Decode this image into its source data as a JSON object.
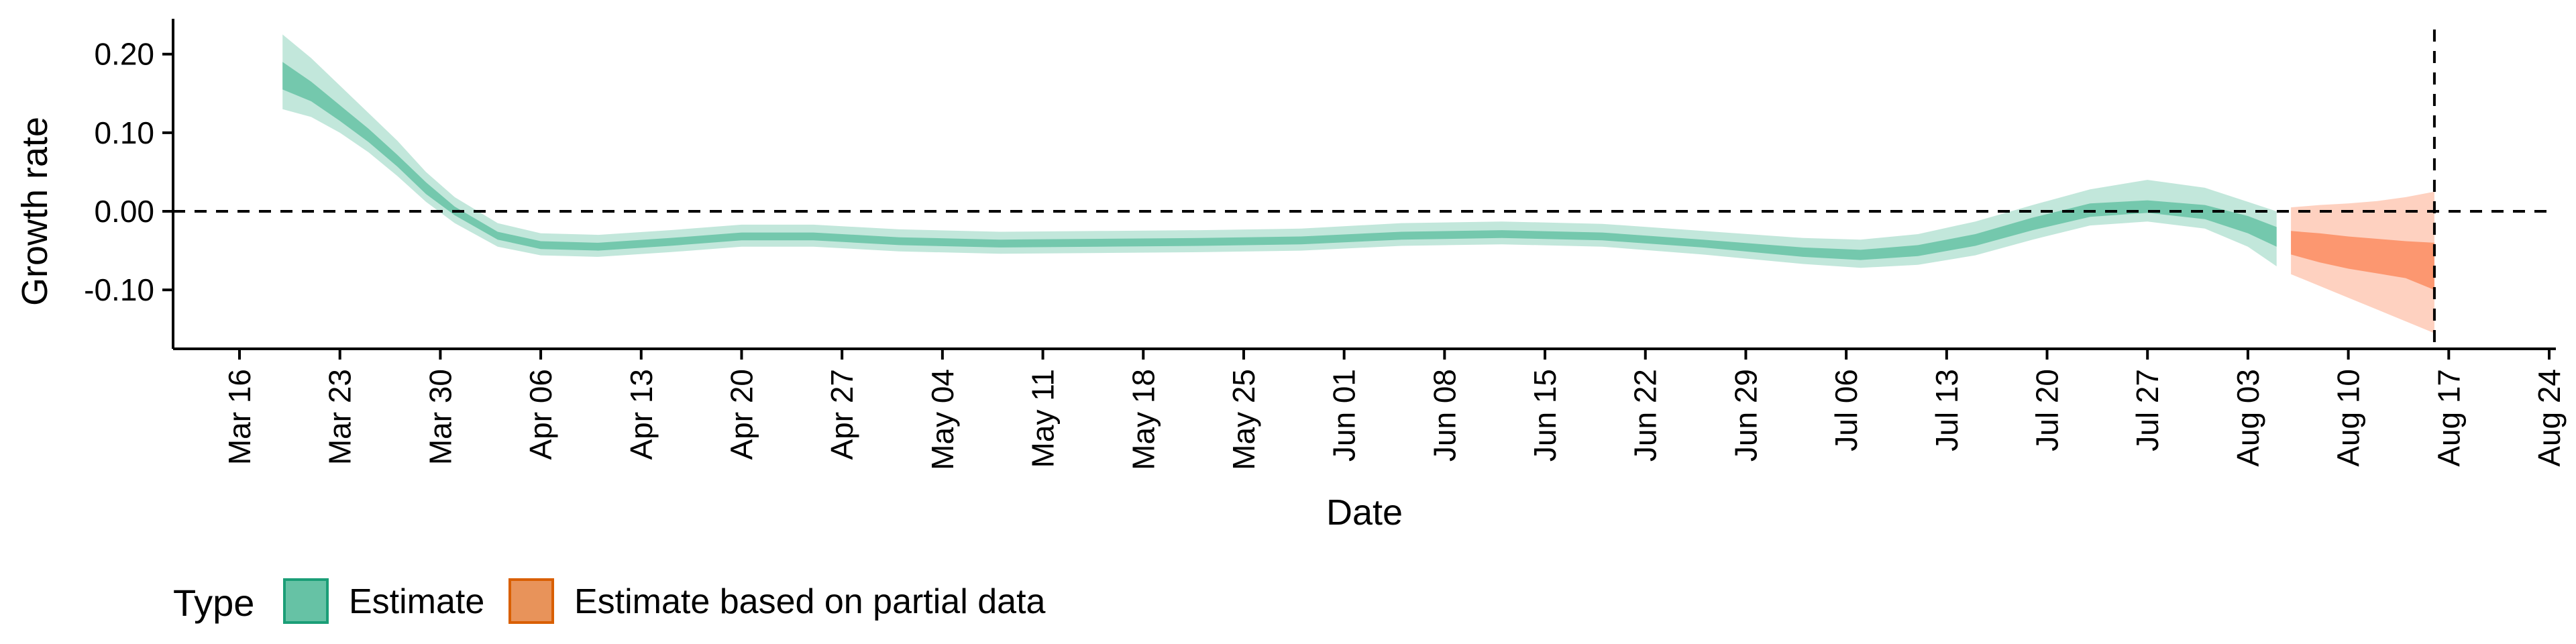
{
  "chart_data": {
    "type": "area",
    "xlabel": "Date",
    "ylabel": "Growth rate",
    "ylim": [
      -0.175,
      0.245
    ],
    "y_ticks": [
      0.2,
      0.1,
      0.0,
      -0.1
    ],
    "y_tick_labels": [
      "0.20",
      "0.10",
      "0.00",
      "-0.10"
    ],
    "x_tick_labels": [
      "Mar 16",
      "Mar 23",
      "Mar 30",
      "Apr 06",
      "Apr 13",
      "Apr 20",
      "Apr 27",
      "May 04",
      "May 11",
      "May 18",
      "May 25",
      "Jun 01",
      "Jun 08",
      "Jun 15",
      "Jun 22",
      "Jun 29",
      "Jul 06",
      "Jul 13",
      "Jul 20",
      "Jul 27",
      "Aug 03",
      "Aug 10",
      "Aug 17",
      "Aug 24"
    ],
    "x_ticks": [
      "2020-03-16",
      "2020-03-23",
      "2020-03-30",
      "2020-04-06",
      "2020-04-13",
      "2020-04-20",
      "2020-04-27",
      "2020-05-04",
      "2020-05-11",
      "2020-05-18",
      "2020-05-25",
      "2020-06-01",
      "2020-06-08",
      "2020-06-15",
      "2020-06-22",
      "2020-06-29",
      "2020-07-06",
      "2020-07-13",
      "2020-07-20",
      "2020-07-27",
      "2020-08-03",
      "2020-08-10",
      "2020-08-17",
      "2020-08-24"
    ],
    "reference_lines": {
      "y": 0.0,
      "x": "2020-08-16",
      "style": "dashed"
    },
    "colors": {
      "estimate": "#66c2a5",
      "partial": "#fc8d62"
    },
    "legend": {
      "title": "Type",
      "placement": "bottom-left",
      "entries": [
        "Estimate",
        "Estimate based on partial data"
      ]
    },
    "series": [
      {
        "name": "Estimate",
        "points": [
          {
            "x": "2020-03-19",
            "lo90": 0.13,
            "lo50": 0.155,
            "hi50": 0.19,
            "hi90": 0.225
          },
          {
            "x": "2020-03-21",
            "lo90": 0.12,
            "lo50": 0.14,
            "hi50": 0.165,
            "hi90": 0.195
          },
          {
            "x": "2020-03-23",
            "lo90": 0.1,
            "lo50": 0.115,
            "hi50": 0.135,
            "hi90": 0.16
          },
          {
            "x": "2020-03-25",
            "lo90": 0.075,
            "lo50": 0.088,
            "hi50": 0.105,
            "hi90": 0.125
          },
          {
            "x": "2020-03-27",
            "lo90": 0.045,
            "lo50": 0.057,
            "hi50": 0.072,
            "hi90": 0.09
          },
          {
            "x": "2020-03-29",
            "lo90": 0.012,
            "lo50": 0.022,
            "hi50": 0.037,
            "hi90": 0.05
          },
          {
            "x": "2020-03-31",
            "lo90": -0.015,
            "lo50": -0.005,
            "hi50": 0.006,
            "hi90": 0.018
          },
          {
            "x": "2020-04-03",
            "lo90": -0.045,
            "lo50": -0.036,
            "hi50": -0.026,
            "hi90": -0.015
          },
          {
            "x": "2020-04-06",
            "lo90": -0.056,
            "lo50": -0.048,
            "hi50": -0.038,
            "hi90": -0.028
          },
          {
            "x": "2020-04-10",
            "lo90": -0.058,
            "lo50": -0.05,
            "hi50": -0.04,
            "hi90": -0.03
          },
          {
            "x": "2020-04-15",
            "lo90": -0.052,
            "lo50": -0.044,
            "hi50": -0.034,
            "hi90": -0.024
          },
          {
            "x": "2020-04-20",
            "lo90": -0.045,
            "lo50": -0.037,
            "hi50": -0.027,
            "hi90": -0.017
          },
          {
            "x": "2020-04-25",
            "lo90": -0.045,
            "lo50": -0.037,
            "hi50": -0.027,
            "hi90": -0.017
          },
          {
            "x": "2020-05-01",
            "lo90": -0.051,
            "lo50": -0.043,
            "hi50": -0.033,
            "hi90": -0.023
          },
          {
            "x": "2020-05-08",
            "lo90": -0.054,
            "lo50": -0.046,
            "hi50": -0.036,
            "hi90": -0.026
          },
          {
            "x": "2020-05-15",
            "lo90": -0.053,
            "lo50": -0.045,
            "hi50": -0.035,
            "hi90": -0.025
          },
          {
            "x": "2020-05-22",
            "lo90": -0.052,
            "lo50": -0.044,
            "hi50": -0.034,
            "hi90": -0.024
          },
          {
            "x": "2020-05-29",
            "lo90": -0.05,
            "lo50": -0.042,
            "hi50": -0.032,
            "hi90": -0.022
          },
          {
            "x": "2020-06-05",
            "lo90": -0.044,
            "lo50": -0.036,
            "hi50": -0.026,
            "hi90": -0.015
          },
          {
            "x": "2020-06-12",
            "lo90": -0.042,
            "lo50": -0.034,
            "hi50": -0.024,
            "hi90": -0.013
          },
          {
            "x": "2020-06-19",
            "lo90": -0.045,
            "lo50": -0.037,
            "hi50": -0.027,
            "hi90": -0.016
          },
          {
            "x": "2020-06-26",
            "lo90": -0.055,
            "lo50": -0.046,
            "hi50": -0.036,
            "hi90": -0.025
          },
          {
            "x": "2020-07-03",
            "lo90": -0.067,
            "lo50": -0.058,
            "hi50": -0.046,
            "hi90": -0.034
          },
          {
            "x": "2020-07-07",
            "lo90": -0.072,
            "lo50": -0.062,
            "hi50": -0.049,
            "hi90": -0.036
          },
          {
            "x": "2020-07-11",
            "lo90": -0.068,
            "lo50": -0.057,
            "hi50": -0.043,
            "hi90": -0.029
          },
          {
            "x": "2020-07-15",
            "lo90": -0.056,
            "lo50": -0.044,
            "hi50": -0.029,
            "hi90": -0.013
          },
          {
            "x": "2020-07-19",
            "lo90": -0.036,
            "lo50": -0.024,
            "hi50": -0.008,
            "hi90": 0.008
          },
          {
            "x": "2020-07-23",
            "lo90": -0.018,
            "lo50": -0.007,
            "hi50": 0.01,
            "hi90": 0.028
          },
          {
            "x": "2020-07-27",
            "lo90": -0.013,
            "lo50": -0.002,
            "hi50": 0.014,
            "hi90": 0.04
          },
          {
            "x": "2020-07-31",
            "lo90": -0.022,
            "lo50": -0.01,
            "hi50": 0.008,
            "hi90": 0.03
          },
          {
            "x": "2020-08-03",
            "lo90": -0.045,
            "lo50": -0.028,
            "hi50": -0.006,
            "hi90": 0.012
          },
          {
            "x": "2020-08-05",
            "lo90": -0.07,
            "lo50": -0.045,
            "hi50": -0.02,
            "hi90": 0.0
          }
        ]
      },
      {
        "name": "Estimate based on partial data",
        "points": [
          {
            "x": "2020-08-06",
            "lo90": -0.08,
            "lo50": -0.055,
            "hi50": -0.025,
            "hi90": 0.005
          },
          {
            "x": "2020-08-08",
            "lo90": -0.095,
            "lo50": -0.065,
            "hi50": -0.028,
            "hi90": 0.008
          },
          {
            "x": "2020-08-10",
            "lo90": -0.11,
            "lo50": -0.073,
            "hi50": -0.032,
            "hi90": 0.01
          },
          {
            "x": "2020-08-12",
            "lo90": -0.125,
            "lo50": -0.079,
            "hi50": -0.035,
            "hi90": 0.013
          },
          {
            "x": "2020-08-14",
            "lo90": -0.14,
            "lo50": -0.085,
            "hi50": -0.038,
            "hi90": 0.018
          },
          {
            "x": "2020-08-16",
            "lo90": -0.155,
            "lo50": -0.1,
            "hi50": -0.04,
            "hi90": 0.025
          }
        ]
      }
    ]
  }
}
